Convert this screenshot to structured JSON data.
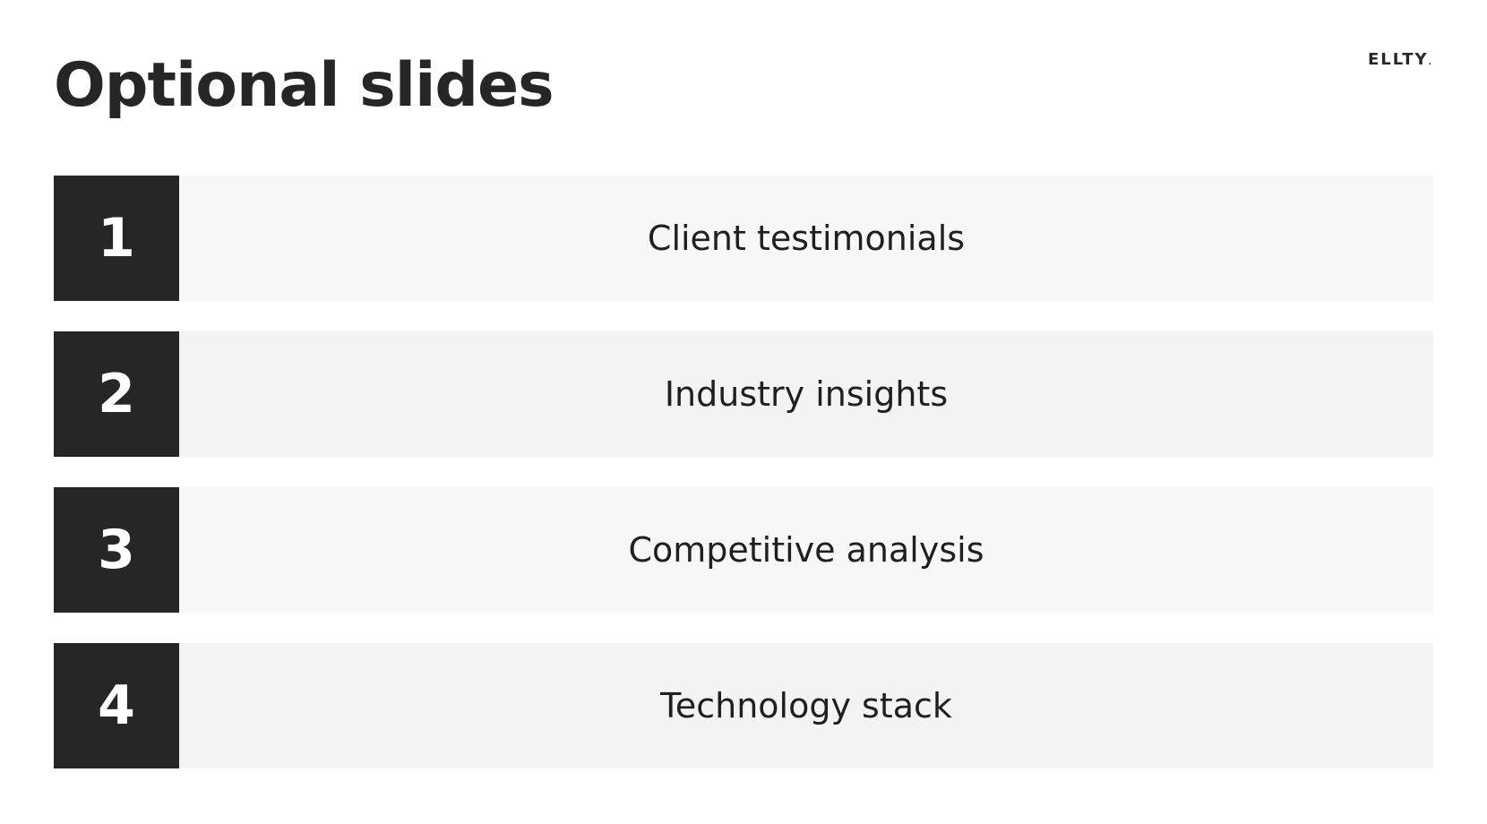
{
  "title": "Optional slides",
  "logo": {
    "text": "ELLTY",
    "dot": "."
  },
  "items": [
    {
      "number": "1",
      "label": "Client testimonials",
      "background": "#f7f7f7"
    },
    {
      "number": "2",
      "label": "Industry insights",
      "background": "#f3f3f3"
    },
    {
      "number": "3",
      "label": "Competitive analysis",
      "background": "#f7f7f7"
    },
    {
      "number": "4",
      "label": "Technology stack",
      "background": "#f3f3f3"
    }
  ],
  "colors": {
    "accent_dark": "#262626",
    "text_on_dark": "#ffffff"
  }
}
